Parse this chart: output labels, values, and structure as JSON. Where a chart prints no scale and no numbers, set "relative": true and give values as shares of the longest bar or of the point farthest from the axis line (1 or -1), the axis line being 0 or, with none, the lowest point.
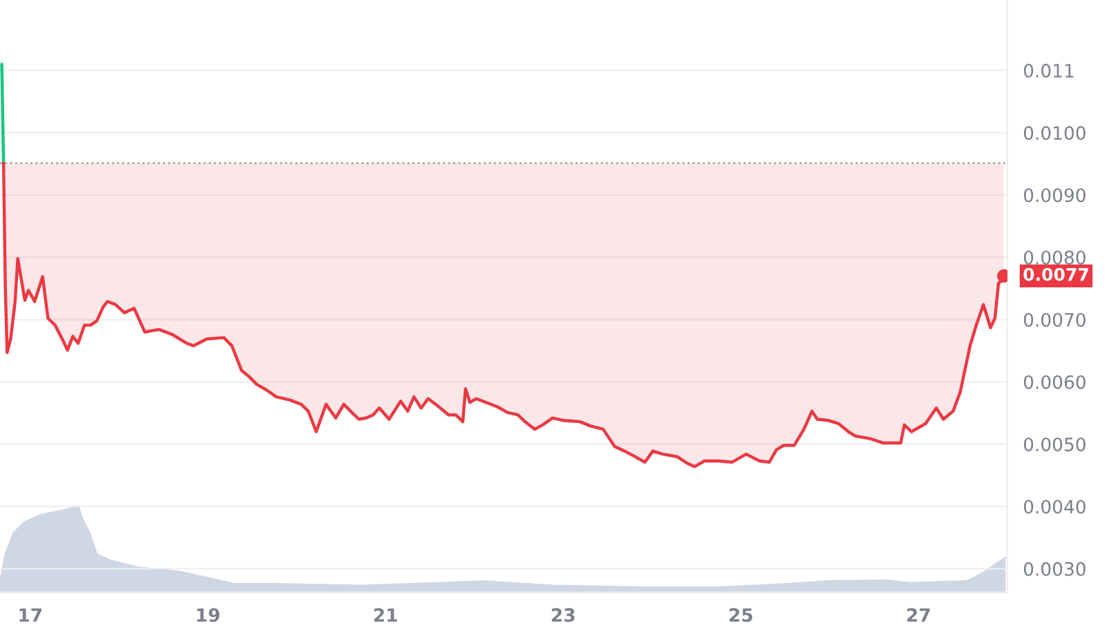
{
  "chart_data": [
    {
      "type": "line",
      "xlim": [
        16.66,
        28.0
      ],
      "xticks": [
        17,
        19,
        21,
        23,
        25,
        27
      ],
      "ylim": [
        0.00262,
        0.01213
      ],
      "yticks": [
        {
          "value": 0.003,
          "label": "0.0030"
        },
        {
          "value": 0.004,
          "label": "0.0040"
        },
        {
          "value": 0.005,
          "label": "0.0050"
        },
        {
          "value": 0.006,
          "label": "0.0060"
        },
        {
          "value": 0.007,
          "label": "0.0070"
        },
        {
          "value": 0.008,
          "label": "0.0080"
        },
        {
          "value": 0.009,
          "label": "0.0090"
        },
        {
          "value": 0.01,
          "label": "0.0100"
        },
        {
          "value": 0.011,
          "label": "0.011"
        }
      ],
      "grid": "y",
      "legend": false,
      "ref_lines": [
        {
          "axis": "y",
          "value": 0.00951,
          "color": "#a0a0a0",
          "line_style": "dotted"
        }
      ],
      "annotations": [
        {
          "text": "0.0077",
          "x": 27.96,
          "y": 0.0077
        }
      ],
      "series": [
        {
          "type": "line",
          "color": "#16c784",
          "x": [
            16.68,
            16.7
          ],
          "values": [
            0.0111,
            0.00951
          ]
        },
        {
          "type": "line",
          "color": "#ea3943",
          "x": [
            16.7,
            16.72,
            16.74,
            16.78,
            16.83,
            16.86,
            16.94,
            16.98,
            17.05,
            17.14,
            17.2,
            17.28,
            17.36,
            17.42,
            17.48,
            17.54,
            17.61,
            17.68,
            17.75,
            17.82,
            17.87,
            17.96,
            18.06,
            18.17,
            18.29,
            18.45,
            18.6,
            18.76,
            18.84,
            18.99,
            19.18,
            19.27,
            19.38,
            19.46,
            19.55,
            19.66,
            19.77,
            19.92,
            20.05,
            20.13,
            20.22,
            20.33,
            20.44,
            20.53,
            20.62,
            20.7,
            20.78,
            20.86,
            20.93,
            21.04,
            21.17,
            21.25,
            21.32,
            21.4,
            21.48,
            21.6,
            21.71,
            21.79,
            21.87,
            21.9,
            21.95,
            22.02,
            22.13,
            22.26,
            22.37,
            22.49,
            22.57,
            22.68,
            22.77,
            22.88,
            23.0,
            23.19,
            23.31,
            23.45,
            23.58,
            23.69,
            23.81,
            23.92,
            24.01,
            24.12,
            24.28,
            24.4,
            24.48,
            24.59,
            24.74,
            24.9,
            25.06,
            25.21,
            25.32,
            25.4,
            25.48,
            25.6,
            25.71,
            25.8,
            25.86,
            25.99,
            26.1,
            26.21,
            26.29,
            26.45,
            26.6,
            26.8,
            26.84,
            26.92,
            27.08,
            27.2,
            27.28,
            27.39,
            27.47,
            27.58,
            27.65,
            27.73,
            27.81,
            27.86,
            27.9,
            27.96
          ],
          "values": [
            0.00951,
            0.00753,
            0.00647,
            0.00669,
            0.00729,
            0.00798,
            0.00731,
            0.00747,
            0.00729,
            0.00769,
            0.00702,
            0.00691,
            0.00669,
            0.00651,
            0.00673,
            0.00662,
            0.00691,
            0.00691,
            0.00698,
            0.0072,
            0.00729,
            0.00724,
            0.00711,
            0.00718,
            0.0068,
            0.00684,
            0.00676,
            0.00662,
            0.00658,
            0.00669,
            0.00671,
            0.00658,
            0.00618,
            0.00609,
            0.00596,
            0.00587,
            0.00576,
            0.00571,
            0.00564,
            0.00553,
            0.0052,
            0.00564,
            0.00542,
            0.00564,
            0.00551,
            0.0054,
            0.00542,
            0.00547,
            0.00558,
            0.0054,
            0.00569,
            0.00553,
            0.00576,
            0.00558,
            0.00573,
            0.0056,
            0.00547,
            0.00547,
            0.00536,
            0.00589,
            0.00567,
            0.00573,
            0.00567,
            0.0056,
            0.00551,
            0.00547,
            0.00536,
            0.00524,
            0.00531,
            0.00542,
            0.00538,
            0.00536,
            0.00529,
            0.00524,
            0.00496,
            0.00489,
            0.0048,
            0.00471,
            0.00489,
            0.00484,
            0.0048,
            0.00469,
            0.00464,
            0.00473,
            0.00473,
            0.00471,
            0.00484,
            0.00473,
            0.00471,
            0.00491,
            0.00498,
            0.00498,
            0.00524,
            0.00553,
            0.0054,
            0.00538,
            0.00533,
            0.0052,
            0.00513,
            0.00509,
            0.00502,
            0.00502,
            0.00531,
            0.0052,
            0.00533,
            0.00558,
            0.0054,
            0.00553,
            0.00584,
            0.00658,
            0.00691,
            0.00724,
            0.00687,
            0.00702,
            0.00758,
            0.00767
          ]
        }
      ]
    },
    {
      "type": "area",
      "relative": true,
      "xlim": [
        16.66,
        28.0
      ],
      "grid": false,
      "series": [
        {
          "color": "#cfd6e4",
          "x": [
            16.66,
            16.72,
            16.81,
            16.94,
            17.12,
            17.36,
            17.51,
            17.54,
            17.59,
            17.67,
            17.75,
            17.9,
            18.21,
            18.68,
            19.3,
            19.77,
            20.7,
            21.63,
            22.1,
            22.88,
            23.97,
            24.74,
            25.52,
            25.99,
            26.61,
            26.92,
            27.54,
            27.7,
            27.86,
            27.98
          ],
          "values": [
            0.13,
            0.44,
            0.68,
            0.81,
            0.89,
            0.94,
            0.98,
            1,
            0.84,
            0.68,
            0.44,
            0.37,
            0.29,
            0.24,
            0.1,
            0.1,
            0.08,
            0.11,
            0.13,
            0.08,
            0.06,
            0.06,
            0.1,
            0.13,
            0.14,
            0.11,
            0.13,
            0.21,
            0.32,
            0.4
          ]
        }
      ]
    }
  ]
}
